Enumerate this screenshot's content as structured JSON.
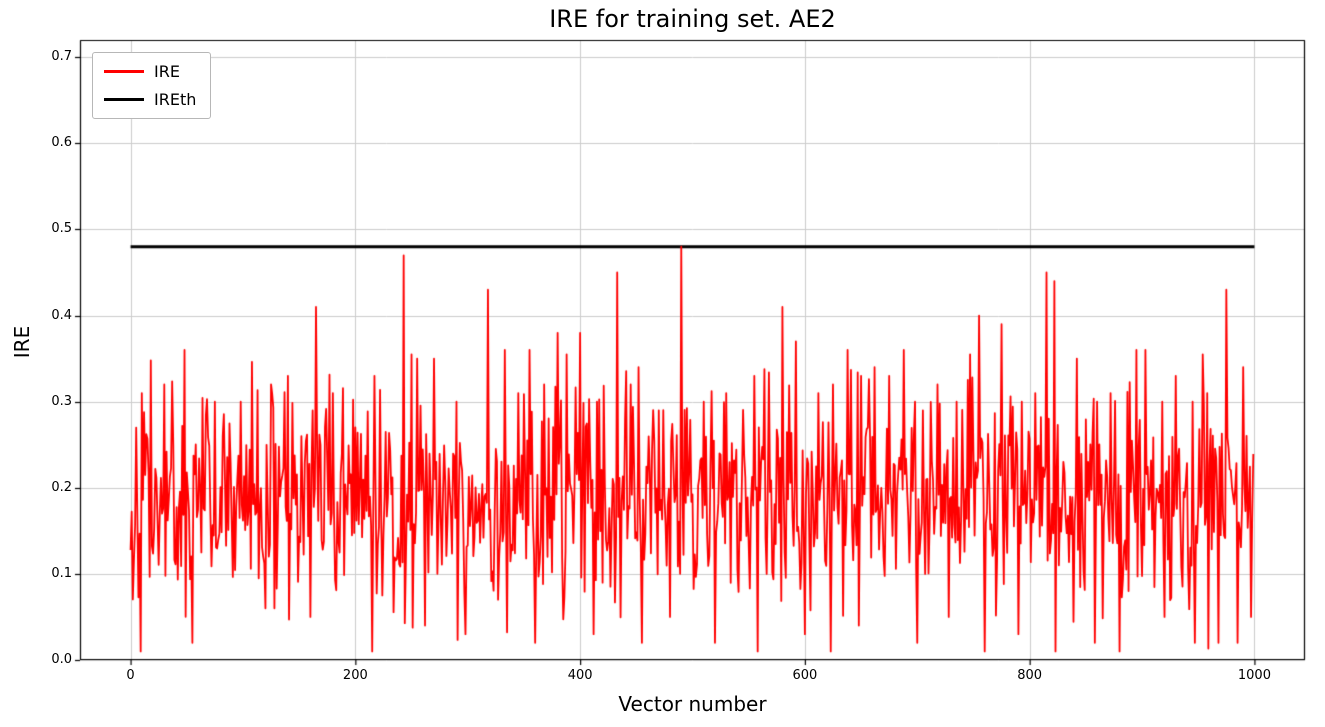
{
  "chart_data": {
    "type": "line",
    "title": "IRE for training set. AE2",
    "xlabel": "Vector number",
    "ylabel": "IRE",
    "xlim": [
      -45,
      1045
    ],
    "ylim": [
      0,
      0.72
    ],
    "xticks": [
      0,
      200,
      400,
      600,
      800,
      1000
    ],
    "yticks": [
      0,
      0.1,
      0.2,
      0.3,
      0.4,
      0.5,
      0.6,
      0.7
    ],
    "grid": true,
    "grid_color": "#cccccc",
    "spine_color": "#000000",
    "background": "#ffffff",
    "legend_position": "upper-left",
    "series": [
      {
        "name": "IRE",
        "color": "#ff0000",
        "line_width": 1.8,
        "type": "noisy",
        "n": 1000,
        "seed": 42,
        "mean": 0.19,
        "std": 0.065,
        "min": 0.01,
        "max": 0.355,
        "peaks": [
          [
            10,
            0.31
          ],
          [
            30,
            0.32
          ],
          [
            48,
            0.36
          ],
          [
            75,
            0.3
          ],
          [
            98,
            0.3
          ],
          [
            140,
            0.33
          ],
          [
            165,
            0.41
          ],
          [
            180,
            0.31
          ],
          [
            200,
            0.27
          ],
          [
            217,
            0.33
          ],
          [
            243,
            0.47
          ],
          [
            255,
            0.35
          ],
          [
            270,
            0.35
          ],
          [
            290,
            0.3
          ],
          [
            318,
            0.43
          ],
          [
            333,
            0.36
          ],
          [
            345,
            0.31
          ],
          [
            355,
            0.36
          ],
          [
            368,
            0.32
          ],
          [
            380,
            0.38
          ],
          [
            400,
            0.38
          ],
          [
            415,
            0.3
          ],
          [
            433,
            0.45
          ],
          [
            445,
            0.32
          ],
          [
            452,
            0.34
          ],
          [
            470,
            0.29
          ],
          [
            490,
            0.48
          ],
          [
            510,
            0.3
          ],
          [
            530,
            0.31
          ],
          [
            555,
            0.33
          ],
          [
            580,
            0.41
          ],
          [
            592,
            0.37
          ],
          [
            612,
            0.31
          ],
          [
            625,
            0.32
          ],
          [
            638,
            0.36
          ],
          [
            650,
            0.33
          ],
          [
            662,
            0.34
          ],
          [
            675,
            0.33
          ],
          [
            688,
            0.36
          ],
          [
            705,
            0.29
          ],
          [
            718,
            0.32
          ],
          [
            735,
            0.3
          ],
          [
            755,
            0.4
          ],
          [
            775,
            0.39
          ],
          [
            793,
            0.3
          ],
          [
            805,
            0.31
          ],
          [
            815,
            0.45
          ],
          [
            822,
            0.44
          ],
          [
            842,
            0.35
          ],
          [
            860,
            0.3
          ],
          [
            872,
            0.31
          ],
          [
            895,
            0.36
          ],
          [
            903,
            0.36
          ],
          [
            918,
            0.3
          ],
          [
            930,
            0.33
          ],
          [
            945,
            0.3
          ],
          [
            958,
            0.31
          ],
          [
            975,
            0.43
          ],
          [
            990,
            0.34
          ]
        ],
        "dips": [
          [
            55,
            0.02
          ],
          [
            120,
            0.06
          ],
          [
            128,
            0.06
          ],
          [
            160,
            0.05
          ],
          [
            215,
            0.01
          ],
          [
            262,
            0.04
          ],
          [
            298,
            0.03
          ],
          [
            327,
            0.07
          ],
          [
            360,
            0.02
          ],
          [
            412,
            0.03
          ],
          [
            455,
            0.02
          ],
          [
            480,
            0.05
          ],
          [
            520,
            0.02
          ],
          [
            558,
            0.01
          ],
          [
            600,
            0.03
          ],
          [
            648,
            0.04
          ],
          [
            700,
            0.02
          ],
          [
            728,
            0.05
          ],
          [
            760,
            0.01
          ],
          [
            790,
            0.03
          ],
          [
            823,
            0.01
          ],
          [
            858,
            0.02
          ],
          [
            880,
            0.01
          ],
          [
            920,
            0.05
          ],
          [
            947,
            0.02
          ],
          [
            968,
            0.02
          ],
          [
            985,
            0.02
          ],
          [
            997,
            0.05
          ]
        ]
      },
      {
        "name": "IREth",
        "color": "#000000",
        "line_width": 3,
        "type": "constant",
        "value": 0.48
      }
    ]
  },
  "layout_text": {
    "note": ""
  }
}
